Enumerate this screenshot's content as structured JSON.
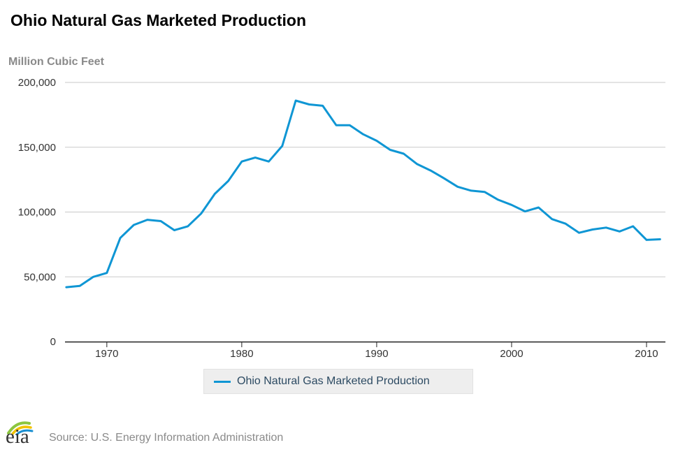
{
  "chart_data": {
    "type": "line",
    "title": "Ohio Natural Gas Marketed Production",
    "ylabel": "Million Cubic Feet",
    "xlabel": "",
    "ylim": [
      0,
      200000
    ],
    "xlim": [
      1967,
      2011
    ],
    "yticks": [
      0,
      50000,
      100000,
      150000,
      200000
    ],
    "yticklabels": [
      "0",
      "50,000",
      "100,000",
      "150,000",
      "200,000"
    ],
    "xticks": [
      1970,
      1980,
      1990,
      2000,
      2010
    ],
    "xticklabels": [
      "1970",
      "1980",
      "1990",
      "2000",
      "2010"
    ],
    "grid": "horizontal",
    "legend": "bottom-center",
    "series": [
      {
        "name": "Ohio Natural Gas Marketed Production",
        "color": "#0f96d4",
        "x": [
          1967,
          1968,
          1969,
          1970,
          1971,
          1972,
          1973,
          1974,
          1975,
          1976,
          1977,
          1978,
          1979,
          1980,
          1981,
          1982,
          1983,
          1984,
          1985,
          1986,
          1987,
          1988,
          1989,
          1990,
          1991,
          1992,
          1993,
          1994,
          1995,
          1996,
          1997,
          1998,
          1999,
          2000,
          2001,
          2002,
          2003,
          2004,
          2005,
          2006,
          2007,
          2008,
          2009,
          2010,
          2011
        ],
        "values": [
          42000,
          43000,
          50000,
          53000,
          80000,
          90000,
          94000,
          93000,
          86000,
          89000,
          99000,
          114000,
          124000,
          139000,
          142000,
          139000,
          151000,
          186000,
          183000,
          182000,
          167000,
          167000,
          160000,
          155000,
          148000,
          145000,
          137000,
          132000,
          126000,
          119500,
          116500,
          115500,
          109500,
          105500,
          100500,
          103500,
          94500,
          91000,
          84000,
          86500,
          88000,
          85000,
          89000,
          78500,
          79000
        ]
      }
    ]
  },
  "legend": {
    "label": "Ohio Natural Gas Marketed Production"
  },
  "footer": {
    "logo_text": "eia",
    "source": "Source: U.S. Energy Information Administration"
  },
  "colors": {
    "series": "#0f96d4",
    "grid": "#c9c9c9",
    "axis": "#222222",
    "logo_green": "#8cc63f",
    "logo_yellow": "#f2c200",
    "logo_blue": "#1a8fd1"
  }
}
